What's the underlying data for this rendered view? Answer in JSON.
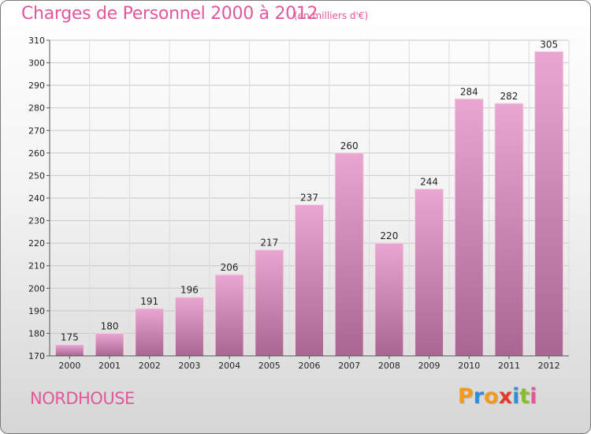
{
  "header": {
    "title": "Charges de Personnel 2000 à 2012",
    "subtitle": "(en milliers d'€)"
  },
  "footer": {
    "town": "NORDHOUSE",
    "logo_letters": [
      "P",
      "r",
      "o",
      "x",
      "i",
      "t",
      "i"
    ]
  },
  "colors": {
    "title": "#e2579b",
    "bar_top": "#e8a6d0",
    "bar_bottom": "#a86691",
    "logo_letters": [
      "#f39a1e",
      "#2f8fd4",
      "#f39a1e",
      "#e23b2c",
      "#2f8fd4",
      "#8cbc2c",
      "#e2579b"
    ]
  },
  "chart_data": {
    "type": "bar",
    "title": "Charges de Personnel 2000 à 2012",
    "subtitle": "(en milliers d'€)",
    "categories": [
      "2000",
      "2001",
      "2002",
      "2003",
      "2004",
      "2005",
      "2006",
      "2007",
      "2008",
      "2009",
      "2010",
      "2011",
      "2012"
    ],
    "values": [
      175,
      180,
      191,
      196,
      206,
      217,
      237,
      260,
      220,
      244,
      284,
      282,
      305
    ],
    "ylim": [
      170,
      310
    ],
    "yticks": [
      170,
      180,
      190,
      200,
      210,
      220,
      230,
      240,
      250,
      260,
      270,
      280,
      290,
      300,
      310
    ],
    "grid": true,
    "legend": "none"
  }
}
